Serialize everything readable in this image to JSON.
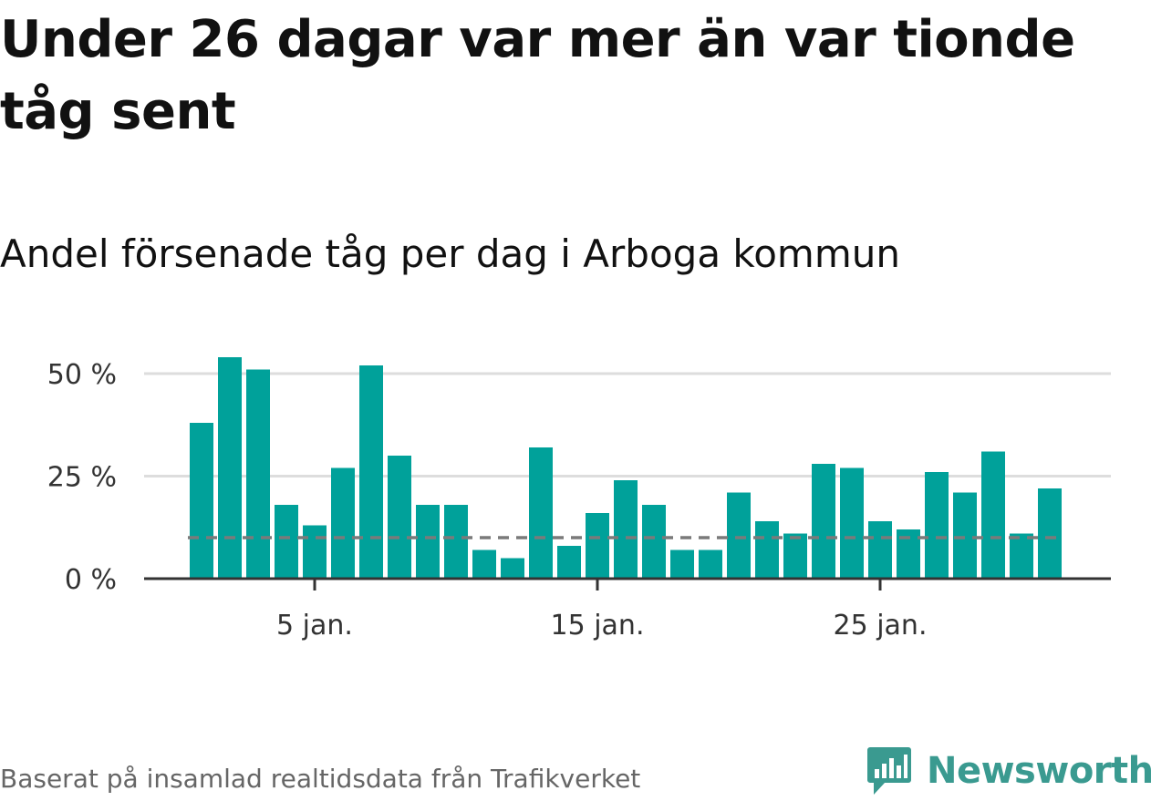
{
  "title": "Under 26 dagar var mer än var tionde tåg sent",
  "subtitle": "Andel försenade tåg per dag i Arboga kommun",
  "footer": {
    "source": "Baserat på insamlad realtidsdata från Trafikverket",
    "brand": "Newsworthy"
  },
  "colors": {
    "bar": "#00a19a",
    "reference_line": "#7a7a7a",
    "grid": "#dddddd",
    "axis": "#333333",
    "brand": "#3a9a90"
  },
  "chart_data": {
    "type": "bar",
    "x_unit": "day of January",
    "x": [
      1,
      2,
      3,
      4,
      5,
      6,
      7,
      8,
      9,
      10,
      11,
      12,
      13,
      14,
      15,
      16,
      17,
      18,
      19,
      20,
      21,
      22,
      23,
      24,
      25,
      26,
      27,
      28,
      29,
      30,
      31
    ],
    "values": [
      38,
      54,
      51,
      18,
      13,
      27,
      52,
      30,
      18,
      18,
      7,
      5,
      32,
      8,
      16,
      24,
      18,
      7,
      7,
      21,
      14,
      11,
      28,
      27,
      14,
      12,
      26,
      21,
      31,
      11,
      22
    ],
    "reference_line": 10,
    "ylim": [
      0,
      54
    ],
    "y_ticks": [
      {
        "value": 0,
        "label": "0 %"
      },
      {
        "value": 25,
        "label": "25 %"
      },
      {
        "value": 50,
        "label": "50 %"
      }
    ],
    "x_ticks": [
      {
        "value": 5,
        "label": "5 jan."
      },
      {
        "value": 15,
        "label": "15 jan."
      },
      {
        "value": 25,
        "label": "25 jan."
      }
    ],
    "grid": true,
    "legend": "none"
  }
}
